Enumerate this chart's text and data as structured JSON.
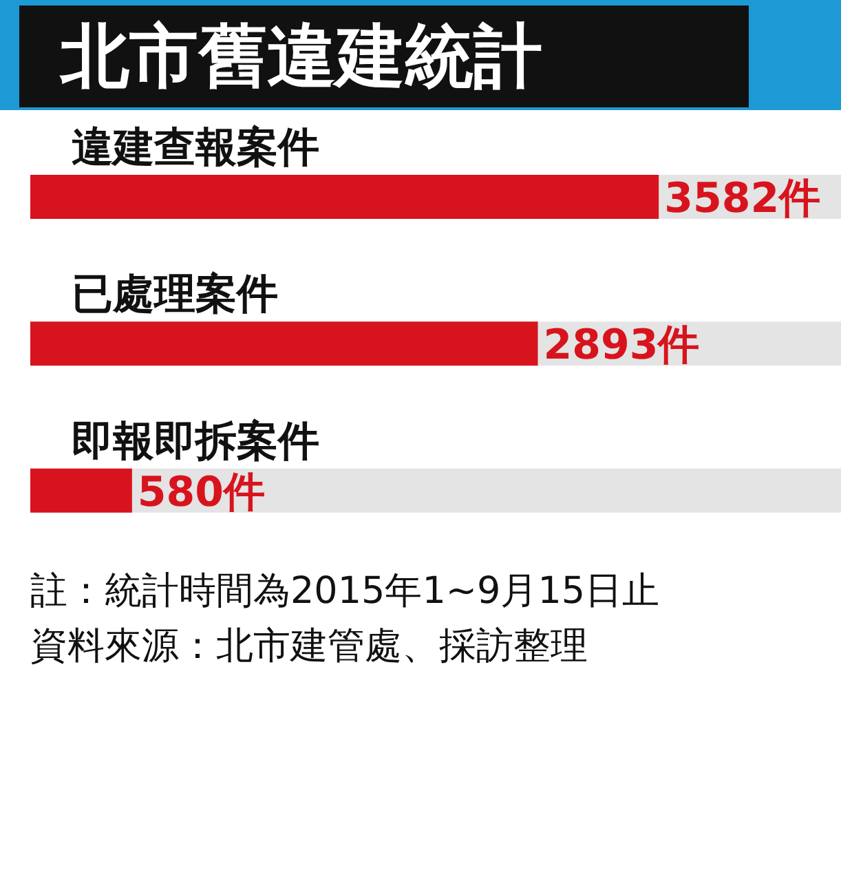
{
  "chart_data": {
    "type": "bar",
    "orientation": "horizontal",
    "title": "北市舊違建統計",
    "categories": [
      "違建查報案件",
      "已處理案件",
      "即報即拆案件"
    ],
    "values": [
      3582,
      2893,
      580
    ],
    "value_labels": [
      "3582件",
      "2893件",
      "580件"
    ],
    "color": "#d7141d",
    "annotations": [
      "註：統計時間為2015年1~9月15日止",
      "資料來源：北市建管處、採訪整理"
    ]
  }
}
